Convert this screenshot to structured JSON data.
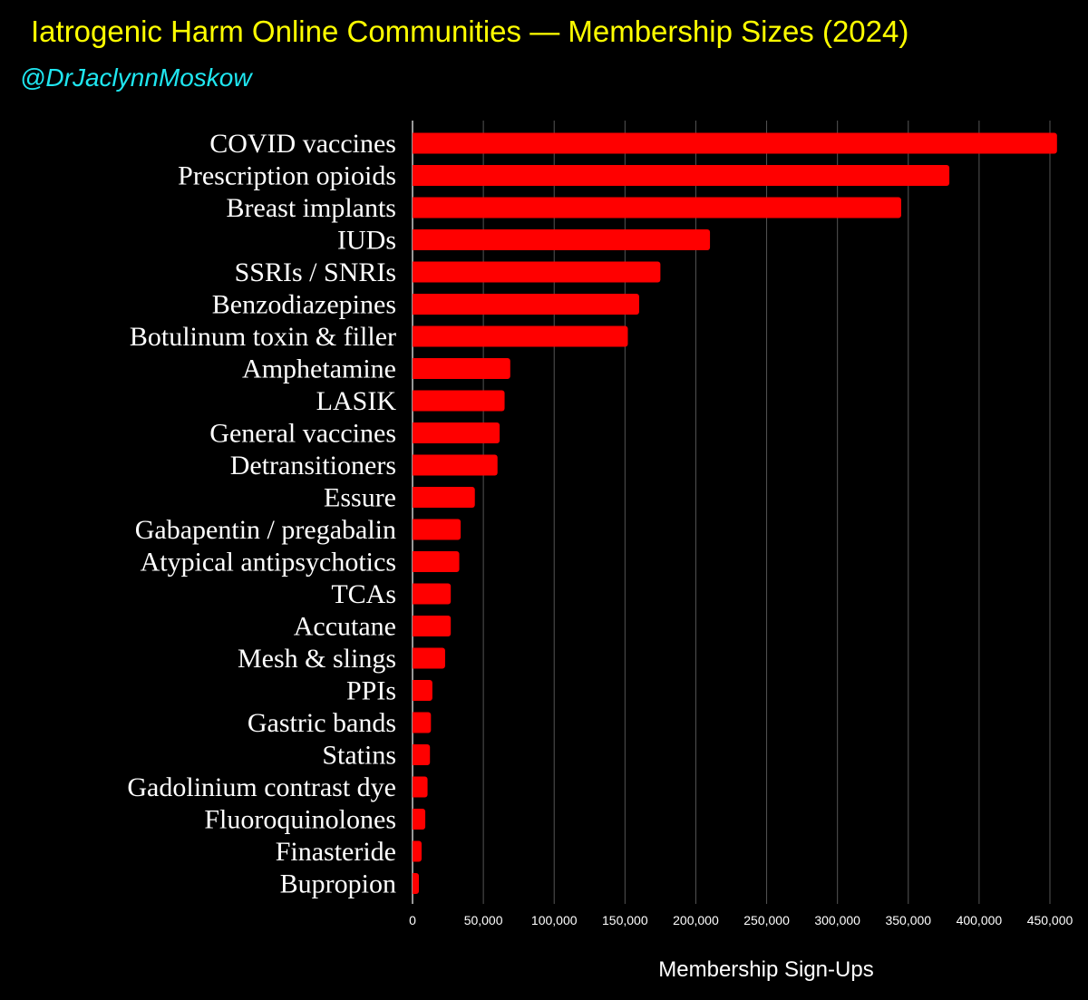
{
  "header": {
    "title": "Iatrogenic Harm Online Communities — Membership Sizes (2024)",
    "handle": "@DrJaclynnMoskow"
  },
  "colors": {
    "bar": "#ff0000",
    "title": "#ffff00",
    "handle": "#1fe6f0",
    "background": "#000000",
    "grid": "#555555"
  },
  "chart_data": {
    "type": "bar",
    "orientation": "horizontal",
    "title": "Iatrogenic Harm Online Communities — Membership Sizes (2024)",
    "xlabel": "Membership Sign-Ups",
    "ylabel": "",
    "xlim": [
      0,
      450000
    ],
    "grid": true,
    "xticks": [
      0,
      50000,
      100000,
      150000,
      200000,
      250000,
      300000,
      350000,
      400000,
      450000
    ],
    "xtick_labels": [
      "0",
      "50,000",
      "100,000",
      "150,000",
      "200,000",
      "250,000",
      "300,000",
      "350,000",
      "400,000",
      "450,000"
    ],
    "categories": [
      "COVID vaccines",
      "Prescription opioids",
      "Breast implants",
      "IUDs",
      "SSRIs / SNRIs",
      "Benzodiazepines",
      "Botulinum toxin & filler",
      "Amphetamine",
      "LASIK",
      "General vaccines",
      "Detransitioners",
      "Essure",
      "Gabapentin / pregabalin",
      "Atypical antipsychotics",
      "TCAs",
      "Accutane",
      "Mesh & slings",
      "PPIs",
      "Gastric bands",
      "Statins",
      "Gadolinium contrast dye",
      "Fluoroquinolones",
      "Finasteride",
      "Bupropion"
    ],
    "values": [
      455000,
      379000,
      345000,
      210000,
      175000,
      160000,
      152000,
      69000,
      65000,
      61500,
      60000,
      44000,
      34000,
      33000,
      27000,
      27000,
      23000,
      14000,
      13000,
      12300,
      10600,
      9000,
      6400,
      4500
    ]
  }
}
